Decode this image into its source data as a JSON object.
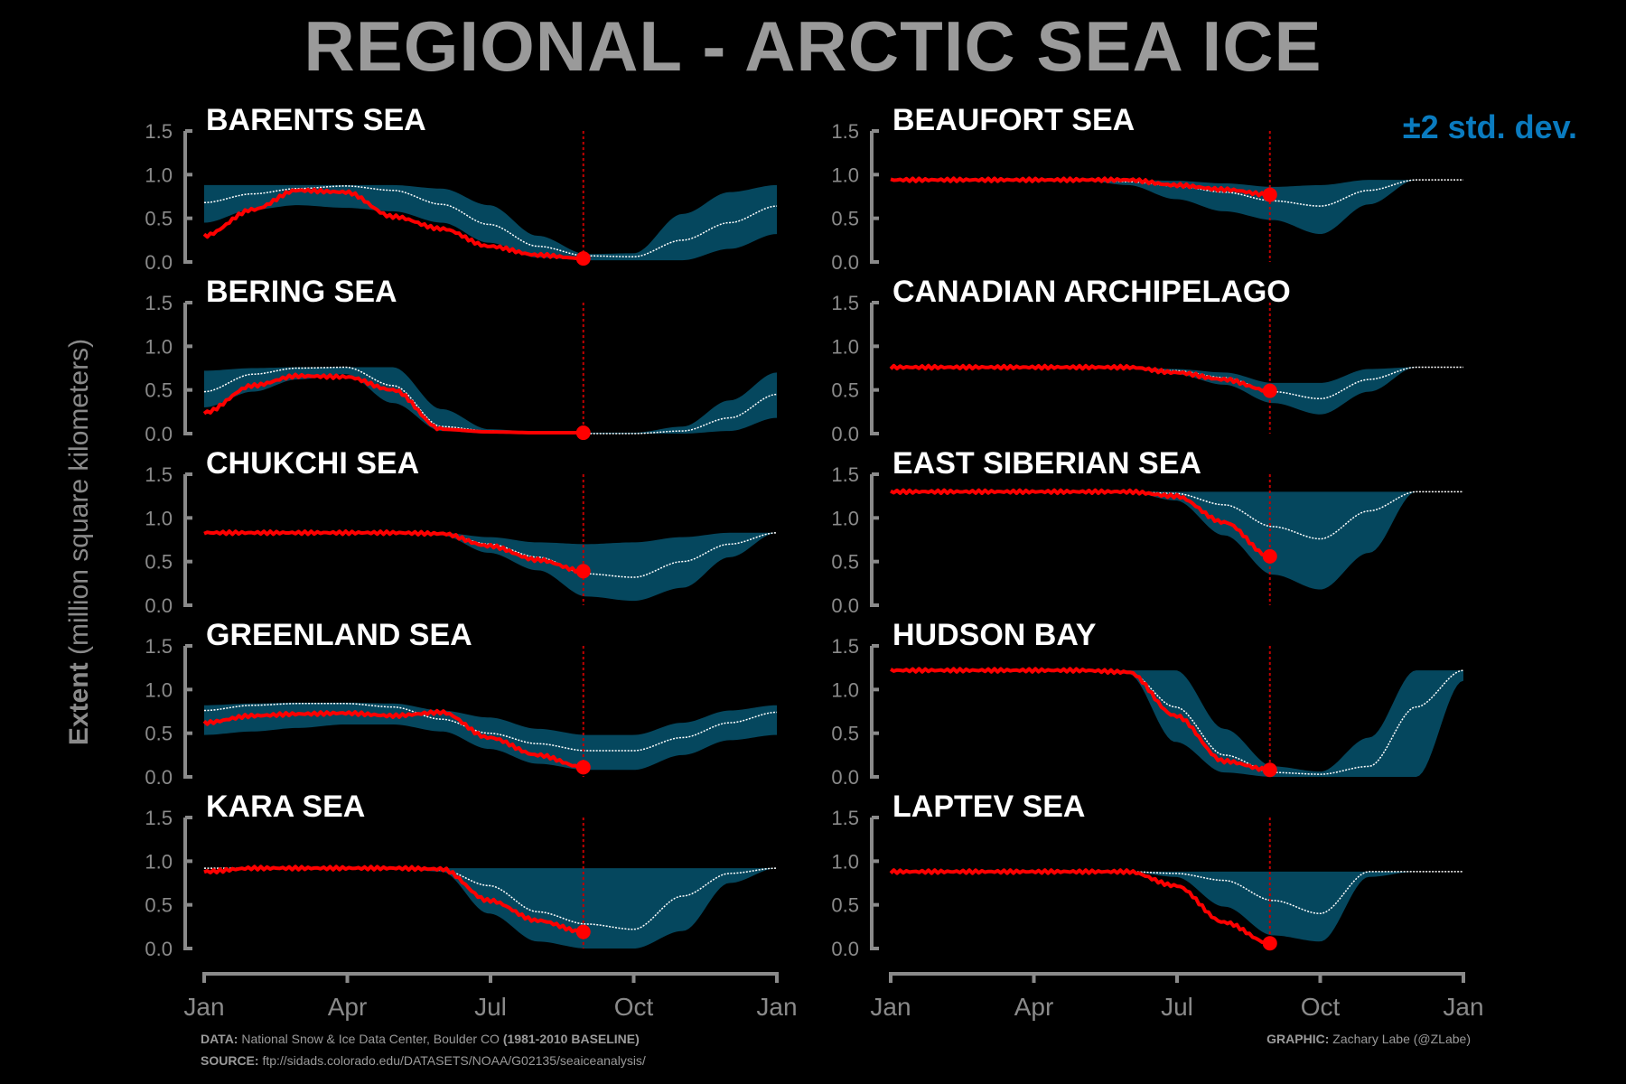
{
  "title": "REGIONAL - ARCTIC SEA ICE",
  "legend": "±2 std. dev.",
  "ylabel": {
    "bold": "Extent",
    "rest": " (million square kilometers)"
  },
  "footer": {
    "data_label": "DATA:",
    "data_text": " National Snow & Ice Data Center, Boulder CO ",
    "baseline": "(1981-2010 BASELINE)",
    "source_label": "SOURCE:",
    "source_text": " ftp://sidads.colorado.edu/DATASETS/NOAA/G02135/seaiceanalysis/",
    "graphic_label": "GRAPHIC:",
    "graphic_text": " Zachary Labe (@ZLabe)"
  },
  "colors": {
    "band": "#05475e",
    "mean": "#ffffff",
    "current": "#ff0000",
    "axis": "#8a8a8a",
    "title": "#9a9a9a",
    "legend": "#0a7bbf"
  },
  "chart_data": {
    "type": "area",
    "x_axis_ticks": [
      "Jan",
      "Apr",
      "Jul",
      "Oct",
      "Jan"
    ],
    "y_ticks": [
      "1.5",
      "1.0",
      "0.5",
      "0.0"
    ],
    "ylim": [
      0,
      1.5
    ],
    "current_day": 242,
    "x_knots": [
      1,
      32,
      60,
      91,
      121,
      152,
      182,
      213,
      244,
      274,
      305,
      335,
      365
    ],
    "panels": [
      {
        "name": "BARENTS SEA",
        "mean": [
          0.68,
          0.78,
          0.84,
          0.87,
          0.82,
          0.66,
          0.43,
          0.18,
          0.07,
          0.06,
          0.25,
          0.45,
          0.64
        ],
        "upper": [
          0.88,
          0.88,
          0.88,
          0.88,
          0.88,
          0.84,
          0.65,
          0.3,
          0.09,
          0.1,
          0.55,
          0.8,
          0.88
        ],
        "lower": [
          0.45,
          0.6,
          0.65,
          0.62,
          0.58,
          0.45,
          0.22,
          0.05,
          0.02,
          0.02,
          0.02,
          0.15,
          0.32
        ],
        "current": [
          0.3,
          0.6,
          0.82,
          0.8,
          0.52,
          0.38,
          0.18,
          0.08,
          0.04
        ]
      },
      {
        "name": "BEAUFORT SEA",
        "mean": [
          0.94,
          0.94,
          0.94,
          0.94,
          0.94,
          0.92,
          0.87,
          0.8,
          0.7,
          0.64,
          0.82,
          0.94,
          0.94
        ],
        "upper": [
          0.94,
          0.94,
          0.94,
          0.94,
          0.94,
          0.94,
          0.93,
          0.9,
          0.86,
          0.88,
          0.94,
          0.94,
          0.94
        ],
        "lower": [
          0.94,
          0.94,
          0.94,
          0.94,
          0.94,
          0.88,
          0.72,
          0.58,
          0.48,
          0.32,
          0.66,
          0.94,
          0.94
        ],
        "current": [
          0.94,
          0.94,
          0.94,
          0.94,
          0.94,
          0.94,
          0.88,
          0.83,
          0.77
        ]
      },
      {
        "name": "BERING SEA",
        "mean": [
          0.48,
          0.68,
          0.75,
          0.76,
          0.55,
          0.08,
          0.03,
          0.01,
          0.0,
          0.0,
          0.03,
          0.18,
          0.45
        ],
        "upper": [
          0.72,
          0.75,
          0.76,
          0.76,
          0.76,
          0.28,
          0.05,
          0.02,
          0.01,
          0.01,
          0.08,
          0.38,
          0.7
        ],
        "lower": [
          0.3,
          0.48,
          0.62,
          0.68,
          0.35,
          0.03,
          0.0,
          0.0,
          0.0,
          0.0,
          0.0,
          0.03,
          0.18
        ],
        "current": [
          0.24,
          0.55,
          0.66,
          0.65,
          0.5,
          0.05,
          0.02,
          0.01,
          0.01
        ]
      },
      {
        "name": "CANADIAN ARCHIPELAGO",
        "mean": [
          0.76,
          0.76,
          0.76,
          0.76,
          0.76,
          0.75,
          0.72,
          0.64,
          0.48,
          0.4,
          0.62,
          0.76,
          0.76
        ],
        "upper": [
          0.76,
          0.76,
          0.76,
          0.76,
          0.76,
          0.76,
          0.74,
          0.7,
          0.58,
          0.58,
          0.74,
          0.76,
          0.76
        ],
        "lower": [
          0.76,
          0.76,
          0.76,
          0.76,
          0.76,
          0.74,
          0.68,
          0.56,
          0.35,
          0.22,
          0.48,
          0.76,
          0.76
        ],
        "current": [
          0.76,
          0.76,
          0.76,
          0.76,
          0.76,
          0.76,
          0.7,
          0.62,
          0.49
        ]
      },
      {
        "name": "CHUKCHI SEA",
        "mean": [
          0.83,
          0.83,
          0.83,
          0.83,
          0.83,
          0.82,
          0.7,
          0.55,
          0.36,
          0.32,
          0.5,
          0.7,
          0.83
        ],
        "upper": [
          0.83,
          0.83,
          0.83,
          0.83,
          0.83,
          0.83,
          0.78,
          0.72,
          0.7,
          0.72,
          0.78,
          0.83,
          0.83
        ],
        "lower": [
          0.83,
          0.83,
          0.83,
          0.83,
          0.83,
          0.8,
          0.6,
          0.4,
          0.1,
          0.05,
          0.2,
          0.55,
          0.83
        ],
        "current": [
          0.83,
          0.83,
          0.83,
          0.83,
          0.83,
          0.82,
          0.68,
          0.52,
          0.39
        ]
      },
      {
        "name": "EAST SIBERIAN SEA",
        "mean": [
          1.3,
          1.3,
          1.3,
          1.3,
          1.3,
          1.3,
          1.28,
          1.15,
          0.9,
          0.76,
          1.08,
          1.3,
          1.3
        ],
        "upper": [
          1.3,
          1.3,
          1.3,
          1.3,
          1.3,
          1.3,
          1.3,
          1.3,
          1.3,
          1.3,
          1.3,
          1.3,
          1.3
        ],
        "lower": [
          1.3,
          1.3,
          1.3,
          1.3,
          1.3,
          1.3,
          1.2,
          0.8,
          0.35,
          0.18,
          0.6,
          1.3,
          1.3
        ],
        "current": [
          1.3,
          1.3,
          1.3,
          1.3,
          1.3,
          1.3,
          1.25,
          0.95,
          0.56
        ]
      },
      {
        "name": "GREENLAND SEA",
        "mean": [
          0.76,
          0.82,
          0.84,
          0.84,
          0.8,
          0.66,
          0.5,
          0.38,
          0.3,
          0.3,
          0.45,
          0.62,
          0.74
        ],
        "upper": [
          0.82,
          0.84,
          0.85,
          0.85,
          0.84,
          0.76,
          0.68,
          0.55,
          0.48,
          0.48,
          0.62,
          0.76,
          0.82
        ],
        "lower": [
          0.48,
          0.52,
          0.56,
          0.6,
          0.6,
          0.52,
          0.32,
          0.15,
          0.08,
          0.08,
          0.25,
          0.42,
          0.48
        ],
        "current": [
          0.62,
          0.7,
          0.72,
          0.73,
          0.7,
          0.74,
          0.45,
          0.25,
          0.11
        ]
      },
      {
        "name": "HUDSON BAY",
        "mean": [
          1.22,
          1.22,
          1.22,
          1.22,
          1.22,
          1.2,
          0.8,
          0.25,
          0.05,
          0.03,
          0.12,
          0.8,
          1.22
        ],
        "upper": [
          1.22,
          1.22,
          1.22,
          1.22,
          1.22,
          1.22,
          1.22,
          0.55,
          0.12,
          0.06,
          0.45,
          1.22,
          1.22
        ],
        "lower": [
          1.22,
          1.22,
          1.22,
          1.22,
          1.22,
          1.18,
          0.4,
          0.05,
          0.0,
          0.0,
          0.0,
          0.0,
          1.1
        ],
        "current": [
          1.22,
          1.22,
          1.22,
          1.22,
          1.22,
          1.2,
          0.7,
          0.18,
          0.08
        ]
      },
      {
        "name": "KARA SEA",
        "mean": [
          0.92,
          0.92,
          0.92,
          0.92,
          0.92,
          0.9,
          0.72,
          0.42,
          0.28,
          0.22,
          0.6,
          0.86,
          0.92
        ],
        "upper": [
          0.92,
          0.92,
          0.92,
          0.92,
          0.92,
          0.92,
          0.92,
          0.92,
          0.92,
          0.92,
          0.92,
          0.92,
          0.92
        ],
        "lower": [
          0.92,
          0.92,
          0.92,
          0.92,
          0.92,
          0.88,
          0.4,
          0.08,
          0.0,
          0.0,
          0.2,
          0.75,
          0.92
        ],
        "current": [
          0.88,
          0.92,
          0.92,
          0.92,
          0.92,
          0.91,
          0.55,
          0.32,
          0.19
        ]
      },
      {
        "name": "LAPTEV SEA",
        "mean": [
          0.88,
          0.88,
          0.88,
          0.88,
          0.88,
          0.88,
          0.86,
          0.78,
          0.55,
          0.4,
          0.88,
          0.88,
          0.88
        ],
        "upper": [
          0.88,
          0.88,
          0.88,
          0.88,
          0.88,
          0.88,
          0.88,
          0.88,
          0.88,
          0.88,
          0.88,
          0.88,
          0.88
        ],
        "lower": [
          0.88,
          0.88,
          0.88,
          0.88,
          0.88,
          0.88,
          0.82,
          0.48,
          0.15,
          0.08,
          0.82,
          0.88,
          0.88
        ],
        "current": [
          0.88,
          0.88,
          0.88,
          0.88,
          0.88,
          0.88,
          0.72,
          0.3,
          0.06
        ]
      }
    ]
  }
}
